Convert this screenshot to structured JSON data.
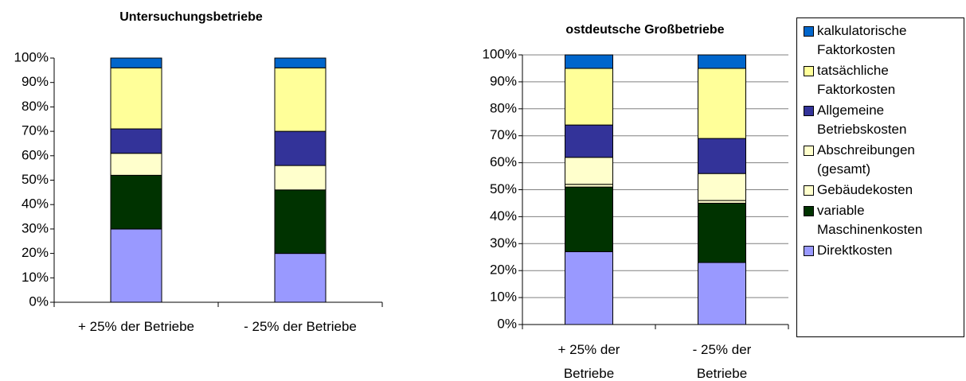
{
  "chart_data": [
    {
      "type": "bar",
      "stacked": true,
      "title": "Untersuchungsbetriebe",
      "categories": [
        "+ 25% der Betriebe",
        "- 25% der Betriebe"
      ],
      "series": [
        {
          "color": "#9999ff",
          "values": [
            30,
            20
          ]
        },
        {
          "color": "#003300",
          "values": [
            22,
            26
          ]
        },
        {
          "color": "#ffffcc",
          "values": [
            0,
            0
          ]
        },
        {
          "color": "#ffffcc",
          "values": [
            9,
            10
          ]
        },
        {
          "color": "#333399",
          "values": [
            10,
            14
          ]
        },
        {
          "color": "#ffff99",
          "values": [
            25,
            26
          ]
        },
        {
          "color": "#0066cc",
          "values": [
            4,
            4
          ]
        }
      ],
      "ylim": [
        0,
        100
      ],
      "yticks": [
        {
          "value": 0,
          "label": "0%"
        },
        {
          "value": 10,
          "label": "10%"
        },
        {
          "value": 20,
          "label": "20%"
        },
        {
          "value": 30,
          "label": "30%"
        },
        {
          "value": 40,
          "label": "40%"
        },
        {
          "value": 50,
          "label": "50%"
        },
        {
          "value": 60,
          "label": "60%"
        },
        {
          "value": 70,
          "label": "70%"
        },
        {
          "value": 80,
          "label": "80%"
        },
        {
          "value": 90,
          "label": "90%"
        },
        {
          "value": 100,
          "label": "100%"
        }
      ],
      "grid": false
    },
    {
      "type": "bar",
      "stacked": true,
      "title": "ostdeutsche Großbetriebe",
      "categories": [
        "+ 25% der Betriebe",
        "- 25% der Betriebe"
      ],
      "series": [
        {
          "name": "Direktkosten",
          "color": "#9999ff",
          "values": [
            27,
            23
          ]
        },
        {
          "name": "variable Maschinenkosten",
          "color": "#003300",
          "values": [
            24,
            22
          ]
        },
        {
          "name": "Gebäudekosten",
          "color": "#ffffcc",
          "values": [
            1,
            1
          ]
        },
        {
          "name": "Abschreibungen (gesamt)",
          "color": "#ffffcc",
          "values": [
            10,
            10
          ]
        },
        {
          "name": "Allgemeine Betriebskosten",
          "color": "#333399",
          "values": [
            12,
            13
          ]
        },
        {
          "name": "tatsächliche Faktorkosten",
          "color": "#ffff99",
          "values": [
            21,
            26
          ]
        },
        {
          "name": "kalkulatorische Faktorkosten",
          "color": "#0066cc",
          "values": [
            5,
            5
          ]
        }
      ],
      "ylim": [
        0,
        100
      ],
      "yticks": [
        {
          "value": 0,
          "label": "0%"
        },
        {
          "value": 10,
          "label": "10%"
        },
        {
          "value": 20,
          "label": "20%"
        },
        {
          "value": 30,
          "label": "30%"
        },
        {
          "value": 40,
          "label": "40%"
        },
        {
          "value": 50,
          "label": "50%"
        },
        {
          "value": 60,
          "label": "60%"
        },
        {
          "value": 70,
          "label": "70%"
        },
        {
          "value": 80,
          "label": "80%"
        },
        {
          "value": 90,
          "label": "90%"
        },
        {
          "value": 100,
          "label": "100%"
        }
      ],
      "grid": true
    }
  ]
}
